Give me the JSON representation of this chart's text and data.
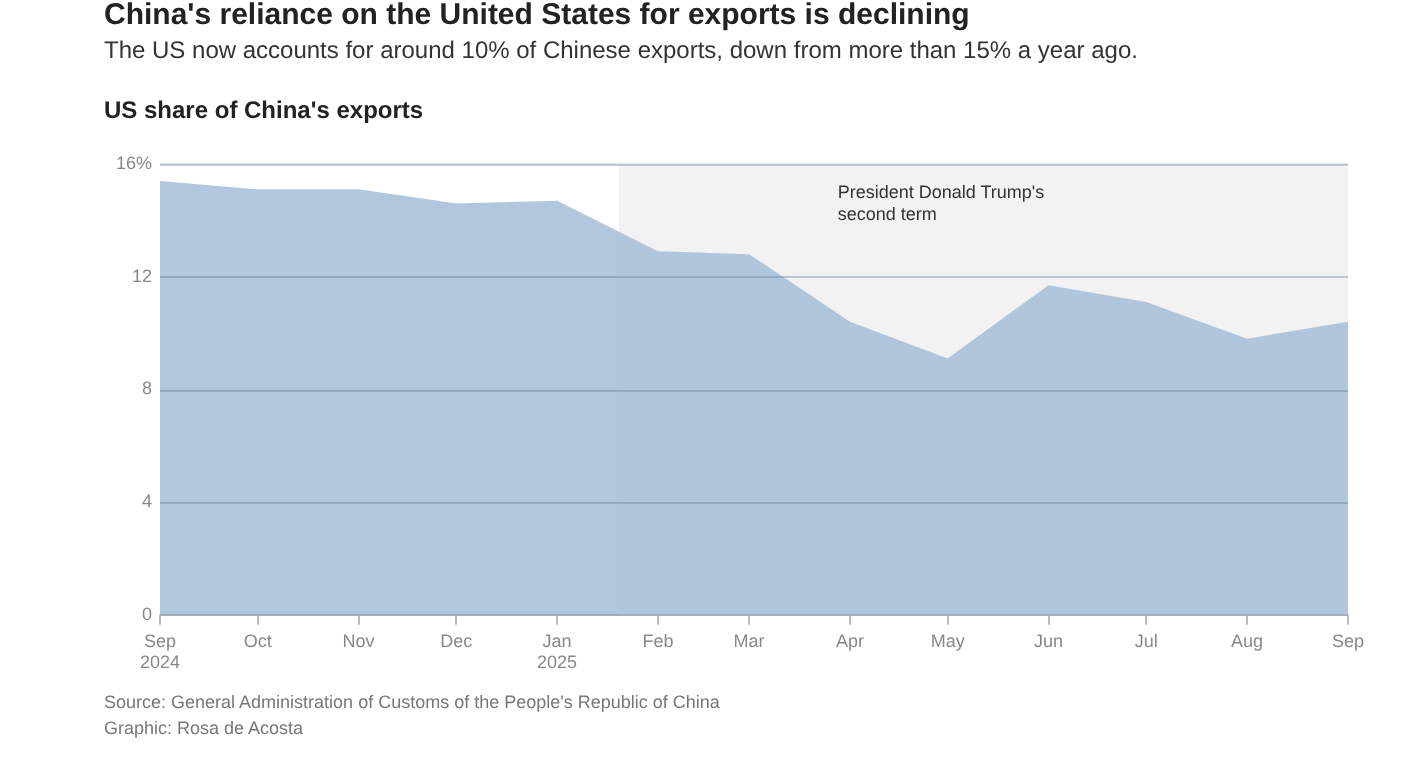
{
  "chart_data": {
    "type": "area",
    "title": "China's reliance on the United States for exports is declining",
    "subtitle": "The US now accounts for around 10% of Chinese exports, down from more than 15% a year ago.",
    "ylabel": "US share of China's exports",
    "x": [
      "2024-09",
      "2024-10",
      "2024-11",
      "2024-12",
      "2025-01",
      "2025-02",
      "2025-03",
      "2025-04",
      "2025-05",
      "2025-06",
      "2025-07",
      "2025-08",
      "2025-09"
    ],
    "series": [
      {
        "color": "#a9c1d9",
        "values": [
          15.4,
          15.1,
          15.1,
          14.6,
          14.7,
          12.9,
          12.8,
          10.4,
          9.1,
          11.7,
          11.1,
          9.8,
          10.4
        ]
      }
    ],
    "xlim": [
      "2024-09",
      "2025-09"
    ],
    "xticks": [
      {
        "value": "2024-09",
        "label": "Sep\n2024"
      },
      {
        "value": "2024-10",
        "label": "Oct"
      },
      {
        "value": "2024-11",
        "label": "Nov"
      },
      {
        "value": "2024-12",
        "label": "Dec"
      },
      {
        "value": "2025-01",
        "label": "Jan\n2025"
      },
      {
        "value": "2025-02",
        "label": "Feb"
      },
      {
        "value": "2025-03",
        "label": "Mar"
      },
      {
        "value": "2025-04",
        "label": "Apr"
      },
      {
        "value": "2025-05",
        "label": "May"
      },
      {
        "value": "2025-06",
        "label": "Jun"
      },
      {
        "value": "2025-07",
        "label": "Jul"
      },
      {
        "value": "2025-08",
        "label": "Aug"
      },
      {
        "value": "2025-09",
        "label": "Sep"
      }
    ],
    "ylim": [
      0,
      16
    ],
    "yticks": [
      0,
      4,
      8,
      12,
      {
        "value": 16,
        "label": "16%"
      }
    ],
    "bands": [
      {
        "axis": "x",
        "from": "2025-01-20",
        "to": "2025-09",
        "label": "President Donald Trump's second term",
        "color": "#f2f2f2"
      }
    ],
    "annotations": [
      "Source: General Administration of Customs of the People's Republic of China",
      "Graphic: Rosa de Acosta"
    ],
    "grid": "y",
    "legend": false,
    "marker": "none"
  }
}
